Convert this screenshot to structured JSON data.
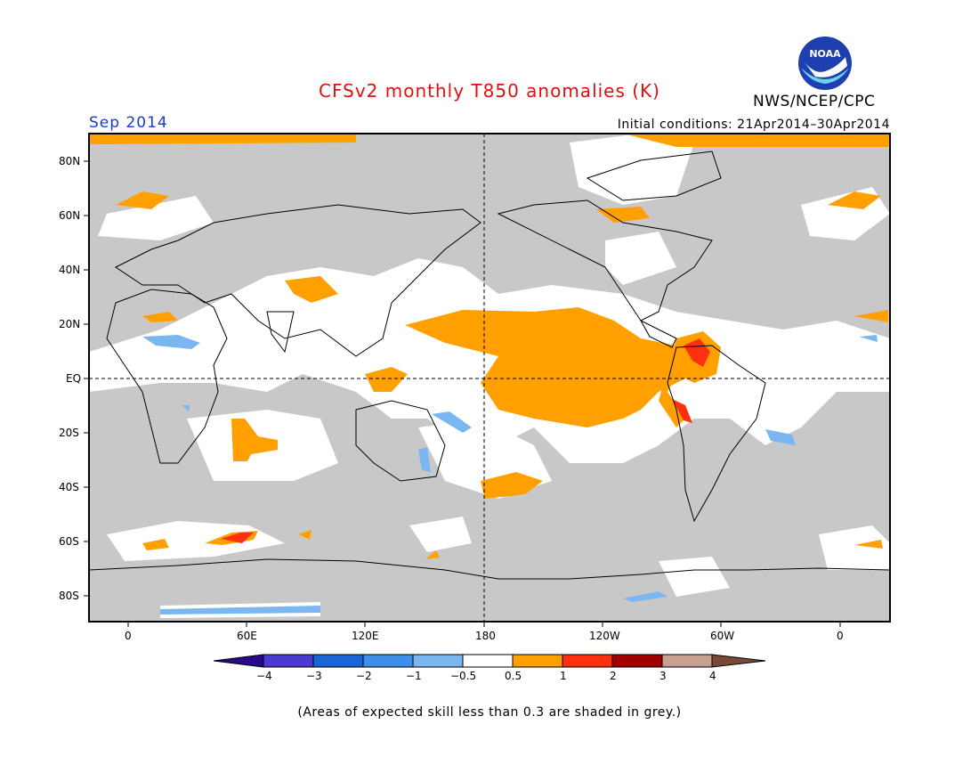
{
  "title": "CFSv2 monthly T850 anomalies (K)",
  "valid_month": "Sep 2014",
  "initial_conditions": "Initial conditions: 21Apr2014–30Apr2014",
  "agency": "NWS/NCEP/CPC",
  "logo_text": "NOAA",
  "footnote": "(Areas of expected skill less than 0.3 are shaded in grey.)",
  "lat_labels": [
    "80N",
    "60N",
    "40N",
    "20N",
    "EQ",
    "20S",
    "40S",
    "60S",
    "80S"
  ],
  "lon_labels": [
    "0",
    "60E",
    "120E",
    "180",
    "120W",
    "60W",
    "0"
  ],
  "colorbar": {
    "labels": [
      "−4",
      "−3",
      "−2",
      "−1",
      "−0.5",
      "0.5",
      "1",
      "2",
      "3",
      "4"
    ],
    "colors": [
      "#2a0a8a",
      "#4a3ad0",
      "#1a64d8",
      "#3f8fe8",
      "#7ab6f0",
      "#ffffff",
      "#ffa000",
      "#ff3010",
      "#a00000",
      "#c8a090",
      "#7a4a38"
    ]
  },
  "colors": {
    "no_skill_grey": "#c8c8c8",
    "neutral_white": "#ffffff",
    "warm_orange": "#ffa000",
    "warm_red": "#ff3010",
    "cool_blue": "#7ab6f0"
  }
}
